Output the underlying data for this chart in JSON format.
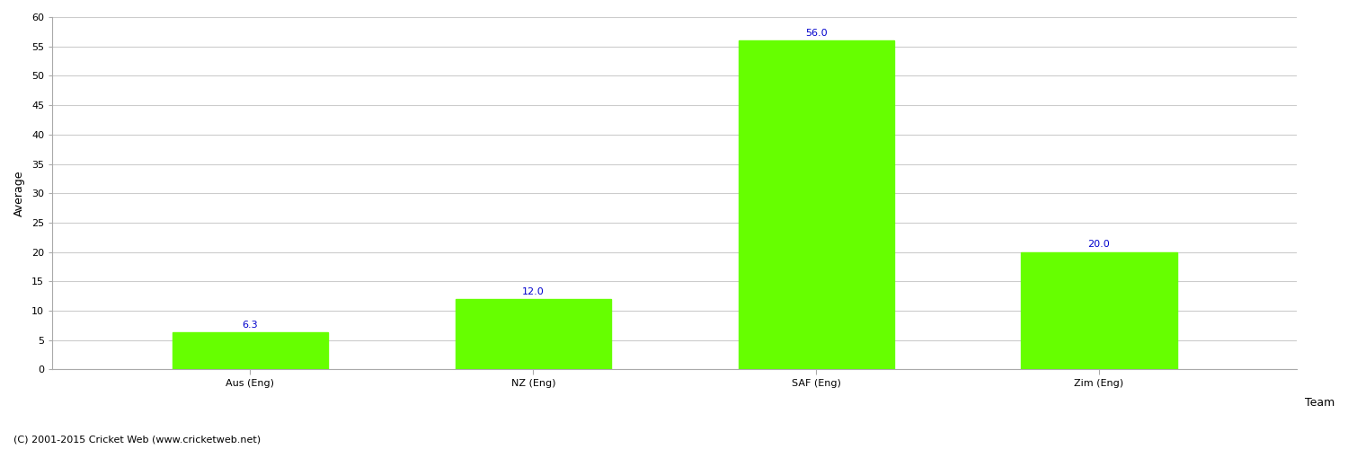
{
  "categories": [
    "Aus (Eng)",
    "NZ (Eng)",
    "SAF (Eng)",
    "Zim (Eng)"
  ],
  "values": [
    6.3,
    12.0,
    56.0,
    20.0
  ],
  "bar_color": "#66ff00",
  "value_color": "#0000cc",
  "xlabel": "Team",
  "ylabel": "Average",
  "ylim": [
    0,
    60
  ],
  "yticks": [
    0,
    5,
    10,
    15,
    20,
    25,
    30,
    35,
    40,
    45,
    50,
    55,
    60
  ],
  "background_color": "#ffffff",
  "grid_color": "#cccccc",
  "footer": "(C) 2001-2015 Cricket Web (www.cricketweb.net)",
  "bar_width": 0.55,
  "value_fontsize": 8,
  "label_fontsize": 8,
  "axis_label_fontsize": 9,
  "footer_fontsize": 8
}
